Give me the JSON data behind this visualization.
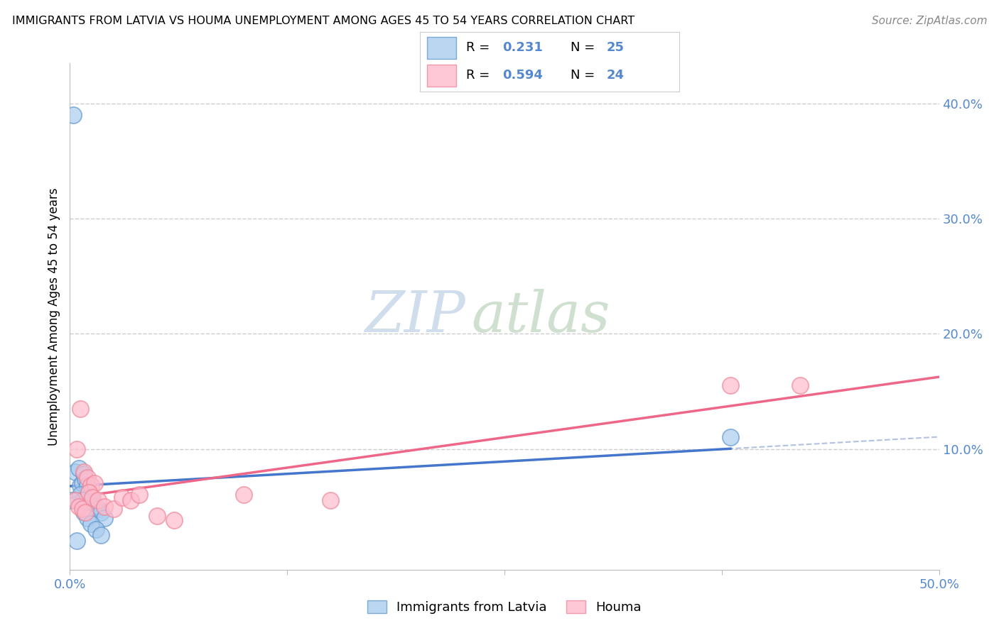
{
  "title": "IMMIGRANTS FROM LATVIA VS HOUMA UNEMPLOYMENT AMONG AGES 45 TO 54 YEARS CORRELATION CHART",
  "source": "Source: ZipAtlas.com",
  "ylabel": "Unemployment Among Ages 45 to 54 years",
  "xlim": [
    0.0,
    0.5
  ],
  "ylim": [
    -0.005,
    0.435
  ],
  "x_tick_positions": [
    0.0,
    0.125,
    0.25,
    0.375,
    0.5
  ],
  "x_tick_labels": [
    "0.0%",
    "",
    "",
    "",
    "50.0%"
  ],
  "y_ticks_right": [
    0.1,
    0.2,
    0.3,
    0.4
  ],
  "y_tick_labels_right": [
    "10.0%",
    "20.0%",
    "30.0%",
    "40.0%"
  ],
  "blue_scatter_x": [
    0.002,
    0.003,
    0.005,
    0.006,
    0.007,
    0.008,
    0.009,
    0.01,
    0.011,
    0.012,
    0.013,
    0.015,
    0.016,
    0.018,
    0.02,
    0.004,
    0.006,
    0.007,
    0.008,
    0.01,
    0.012,
    0.015,
    0.018,
    0.38,
    0.001
  ],
  "blue_scatter_y": [
    0.39,
    0.08,
    0.083,
    0.068,
    0.07,
    0.078,
    0.074,
    0.068,
    0.063,
    0.058,
    0.053,
    0.05,
    0.048,
    0.045,
    0.04,
    0.02,
    0.06,
    0.055,
    0.045,
    0.04,
    0.035,
    0.03,
    0.025,
    0.11,
    0.055
  ],
  "pink_scatter_x": [
    0.004,
    0.006,
    0.008,
    0.01,
    0.012,
    0.014,
    0.003,
    0.005,
    0.007,
    0.009,
    0.011,
    0.013,
    0.016,
    0.02,
    0.025,
    0.03,
    0.035,
    0.04,
    0.05,
    0.06,
    0.1,
    0.15,
    0.38,
    0.42
  ],
  "pink_scatter_y": [
    0.1,
    0.135,
    0.08,
    0.075,
    0.068,
    0.07,
    0.055,
    0.05,
    0.048,
    0.045,
    0.062,
    0.058,
    0.055,
    0.05,
    0.048,
    0.058,
    0.055,
    0.06,
    0.042,
    0.038,
    0.06,
    0.055,
    0.155,
    0.155
  ],
  "blue_R": 0.231,
  "blue_N": 25,
  "pink_R": 0.594,
  "pink_N": 24,
  "blue_scatter_color": "#AACCEE",
  "blue_scatter_edge": "#6699CC",
  "pink_scatter_color": "#FFBBCC",
  "pink_scatter_edge": "#EE8899",
  "blue_line_color": "#4477CC",
  "blue_dash_color": "#AABBDD",
  "pink_line_color": "#EE6688",
  "tick_color": "#5588CC",
  "watermark_zip_color": "#D0DDED",
  "watermark_atlas_color": "#C8DBC8",
  "legend_label_blue": "Immigrants from Latvia",
  "legend_label_pink": "Houma",
  "background_color": "#FFFFFF",
  "grid_color": "#CCCCCC"
}
